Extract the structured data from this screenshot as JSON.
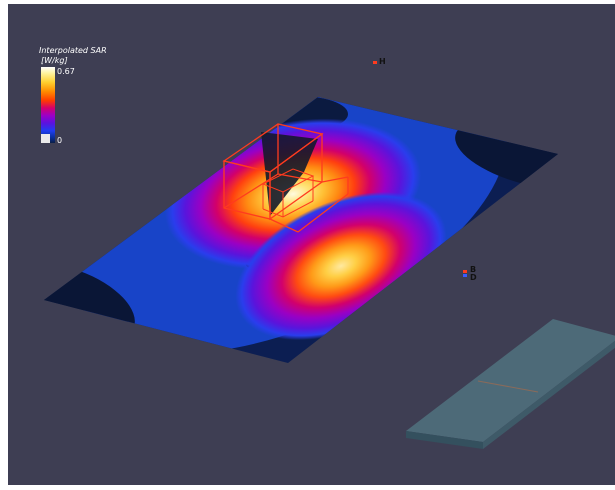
{
  "legend": {
    "title": "Interpolated SAR",
    "unit": "[W/kg]",
    "max_label": "0.67",
    "min_label": "0"
  },
  "probes": [
    {
      "label": "H"
    },
    {
      "label": "B"
    },
    {
      "label": "D"
    }
  ],
  "colors": {
    "background": "#3e3e53",
    "plate": "#4d6a78",
    "cube_wire": "#ff3b1f"
  },
  "icons": [
    "colorbar-icon",
    "probe-axis-icon"
  ]
}
